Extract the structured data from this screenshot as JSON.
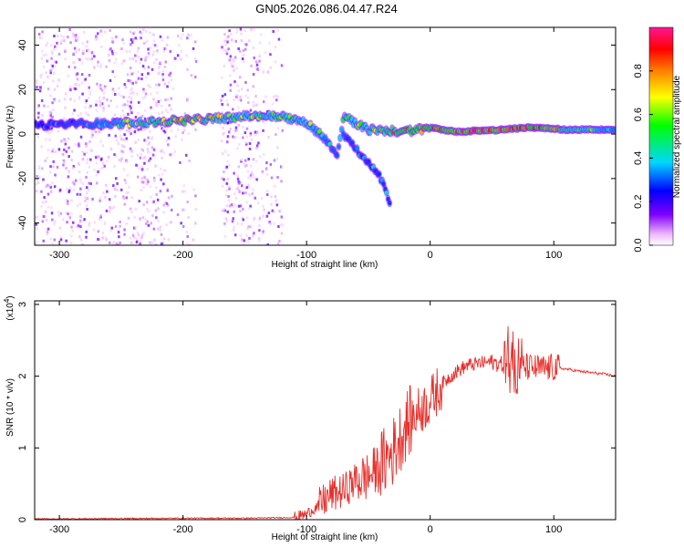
{
  "title": "GN05.2026.086.04.47.R24",
  "chart_data": [
    {
      "id": "spectrogram",
      "type": "heatmap",
      "xlabel": "Height of straight line (km)",
      "ylabel": "Frequency (Hz)",
      "xlim": [
        -320,
        150
      ],
      "ylim": [
        -50,
        48
      ],
      "xticks": [
        -300,
        -200,
        -100,
        0,
        100
      ],
      "yticks": [
        -40,
        -20,
        0,
        20,
        40
      ],
      "colorbar": {
        "label": "Normalized spectral amplitude",
        "range": [
          0,
          1
        ],
        "ticks": [
          "0.0",
          "0.2",
          "0.4",
          "0.6",
          "0.8"
        ],
        "tick_values": [
          0.0,
          0.2,
          0.4,
          0.6,
          0.8
        ]
      },
      "ridge": [
        {
          "x": -320,
          "f": 4,
          "amp": 0.25
        },
        {
          "x": -250,
          "f": 5,
          "amp": 0.45
        },
        {
          "x": -200,
          "f": 6,
          "amp": 0.75
        },
        {
          "x": -150,
          "f": 8,
          "amp": 0.5
        },
        {
          "x": -120,
          "f": 8,
          "amp": 0.55
        },
        {
          "x": -100,
          "f": 5,
          "amp": 0.5
        },
        {
          "x": -85,
          "f": -2,
          "amp": 0.4
        },
        {
          "x": -75,
          "f": -9,
          "amp": 0.35
        },
        {
          "x": -70,
          "f": 8,
          "amp": 0.5
        },
        {
          "x": -50,
          "f": 2,
          "amp": 0.55
        },
        {
          "x": -20,
          "f": 1,
          "amp": 0.8
        },
        {
          "x": 0,
          "f": 3,
          "amp": 0.8
        },
        {
          "x": 20,
          "f": 1,
          "amp": 0.9
        },
        {
          "x": 60,
          "f": 2,
          "amp": 0.9
        },
        {
          "x": 80,
          "f": 3,
          "amp": 0.85
        },
        {
          "x": 110,
          "f": 2,
          "amp": 0.6
        },
        {
          "x": 150,
          "f": 2,
          "amp": 0.4
        }
      ],
      "branch": [
        {
          "x": -70,
          "f": 0,
          "amp": 0.35
        },
        {
          "x": -55,
          "f": -10,
          "amp": 0.3
        },
        {
          "x": -40,
          "f": -20,
          "amp": 0.3
        },
        {
          "x": -32,
          "f": -32,
          "amp": 0.3
        }
      ]
    },
    {
      "id": "snr",
      "type": "line",
      "xlabel": "Height of straight line (km)",
      "ylabel": "SNR (10 * v/v)",
      "multiplier": "(x10",
      "multiplier_exp": "4",
      "multiplier_end": ")",
      "xlim": [
        -320,
        150
      ],
      "ylim": [
        0,
        3.05
      ],
      "xticks": [
        -300,
        -200,
        -100,
        0,
        100
      ],
      "yticks": [
        0,
        1,
        2,
        3
      ],
      "color": "#e8302c",
      "series": [
        {
          "name": "SNR",
          "x": [
            -320,
            -200,
            -150,
            -110,
            -100,
            -90,
            -80,
            -70,
            -60,
            -50,
            -40,
            -30,
            -20,
            -10,
            0,
            10,
            20,
            30,
            40,
            50,
            60,
            70,
            80,
            90,
            100,
            110,
            120,
            130,
            140,
            150
          ],
          "y": [
            0.01,
            0.02,
            0.02,
            0.03,
            0.08,
            0.2,
            0.35,
            0.4,
            0.55,
            0.6,
            0.75,
            0.95,
            1.3,
            1.5,
            1.65,
            1.9,
            2.05,
            2.15,
            2.18,
            2.2,
            2.15,
            2.15,
            2.12,
            2.1,
            2.12,
            2.1,
            2.07,
            2.05,
            2.03,
            2.0
          ]
        }
      ]
    }
  ]
}
